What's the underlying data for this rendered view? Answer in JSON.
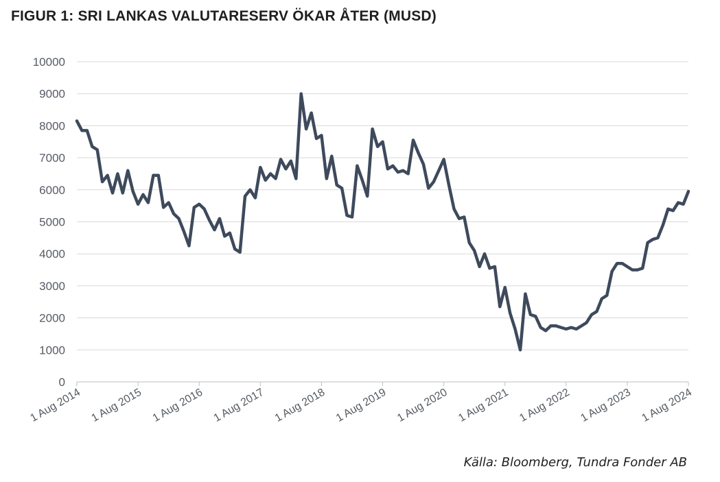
{
  "page": {
    "title": "FIGUR 1: SRI LANKAS VALUTARESERV ÖKAR ÅTER (MUSD)",
    "source": "Källa: Bloomberg, Tundra Fonder AB"
  },
  "chart_data": {
    "type": "line",
    "title": "FIGUR 1: SRI LANKAS VALUTARESERV ÖKAR ÅTER (MUSD)",
    "xlabel": "",
    "ylabel": "",
    "ylim": [
      0,
      10000
    ],
    "yticks": [
      0,
      1000,
      2000,
      3000,
      4000,
      5000,
      6000,
      7000,
      8000,
      9000,
      10000
    ],
    "xticks": [
      "1 Aug 2014",
      "1 Aug 2015",
      "1 Aug 2016",
      "1 Aug 2017",
      "1 Aug 2018",
      "1 Aug 2019",
      "1 Aug 2020",
      "1 Aug 2021",
      "1 Aug 2022",
      "1 Aug 2023",
      "1 Aug 2024"
    ],
    "xlim": [
      "2014-08",
      "2024-08"
    ],
    "grid": "horizontal",
    "line_color": "#3e4a5c",
    "series": [
      {
        "x": [
          "2014-08",
          "2014-09",
          "2014-10",
          "2014-11",
          "2014-12",
          "2015-01",
          "2015-02",
          "2015-03",
          "2015-04",
          "2015-05",
          "2015-06",
          "2015-07",
          "2015-08",
          "2015-09",
          "2015-10",
          "2015-11",
          "2015-12",
          "2016-01",
          "2016-02",
          "2016-03",
          "2016-04",
          "2016-05",
          "2016-06",
          "2016-07",
          "2016-08",
          "2016-09",
          "2016-10",
          "2016-11",
          "2016-12",
          "2017-01",
          "2017-02",
          "2017-03",
          "2017-04",
          "2017-05",
          "2017-06",
          "2017-07",
          "2017-08",
          "2017-09",
          "2017-10",
          "2017-11",
          "2017-12",
          "2018-01",
          "2018-02",
          "2018-03",
          "2018-04",
          "2018-05",
          "2018-06",
          "2018-07",
          "2018-08",
          "2018-09",
          "2018-10",
          "2018-11",
          "2018-12",
          "2019-01",
          "2019-02",
          "2019-03",
          "2019-04",
          "2019-05",
          "2019-06",
          "2019-07",
          "2019-08",
          "2019-09",
          "2019-10",
          "2019-11",
          "2019-12",
          "2020-01",
          "2020-02",
          "2020-03",
          "2020-04",
          "2020-05",
          "2020-06",
          "2020-07",
          "2020-08",
          "2020-09",
          "2020-10",
          "2020-11",
          "2020-12",
          "2021-01",
          "2021-02",
          "2021-03",
          "2021-04",
          "2021-05",
          "2021-06",
          "2021-07",
          "2021-08",
          "2021-09",
          "2021-10",
          "2021-11",
          "2021-12",
          "2022-01",
          "2022-02",
          "2022-03",
          "2022-04",
          "2022-05",
          "2022-06",
          "2022-07",
          "2022-08",
          "2022-09",
          "2022-10",
          "2022-11",
          "2022-12",
          "2023-01",
          "2023-02",
          "2023-03",
          "2023-04",
          "2023-05",
          "2023-06",
          "2023-07",
          "2023-08",
          "2023-09",
          "2023-10",
          "2023-11",
          "2023-12",
          "2024-01",
          "2024-02",
          "2024-03",
          "2024-04",
          "2024-05",
          "2024-06",
          "2024-07",
          "2024-08"
        ],
        "values": [
          8150,
          7850,
          7850,
          7350,
          7250,
          6250,
          6450,
          5900,
          6500,
          5900,
          6600,
          5950,
          5550,
          5850,
          5600,
          6450,
          6450,
          5450,
          5600,
          5250,
          5100,
          4700,
          4250,
          5450,
          5550,
          5400,
          5050,
          4750,
          5100,
          4550,
          4650,
          4150,
          4050,
          5800,
          6000,
          5750,
          6700,
          6300,
          6500,
          6350,
          6950,
          6650,
          6900,
          6350,
          9000,
          7900,
          8400,
          7600,
          7700,
          6350,
          7050,
          6150,
          6050,
          5200,
          5150,
          6750,
          6300,
          5800,
          7900,
          7350,
          7500,
          6650,
          6750,
          6550,
          6600,
          6500,
          7550,
          7150,
          6800,
          6050,
          6250,
          6600,
          6950,
          6150,
          5400,
          5100,
          5150,
          4350,
          4100,
          3600,
          4000,
          3550,
          3600,
          2350,
          2950,
          2150,
          1650,
          1000,
          2750,
          2100,
          2050,
          1700,
          1600,
          1750,
          1750,
          1700,
          1650,
          1700,
          1650,
          1750,
          1850,
          2100,
          2200,
          2600,
          2700,
          3450,
          3700,
          3700,
          3600,
          3500,
          3500,
          3550,
          4350,
          4450,
          4500,
          4900,
          5400,
          5350,
          5600,
          5550,
          5950
        ]
      }
    ]
  }
}
